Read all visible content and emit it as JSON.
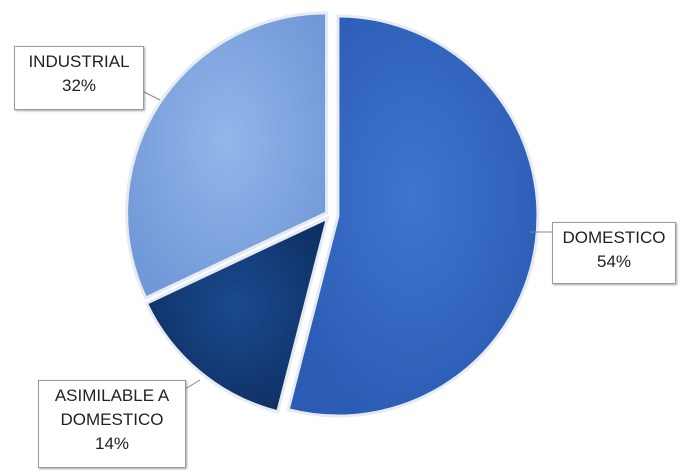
{
  "chart_data": {
    "type": "pie",
    "categories": [
      "DOMESTICO",
      "ASIMILABLE A DOMESTICO",
      "INDUSTRIAL"
    ],
    "values": [
      54,
      14,
      32
    ],
    "labels": [
      {
        "line1": "DOMESTICO",
        "line2": "",
        "pct": "54%"
      },
      {
        "line1": "ASIMILABLE A",
        "line2": "DOMESTICO",
        "pct": "14%"
      },
      {
        "line1": "INDUSTRIAL",
        "line2": "",
        "pct": "32%"
      }
    ],
    "colors": [
      "#2f63bd",
      "#123a74",
      "#7fa6e2"
    ],
    "legend": "none",
    "title": ""
  }
}
